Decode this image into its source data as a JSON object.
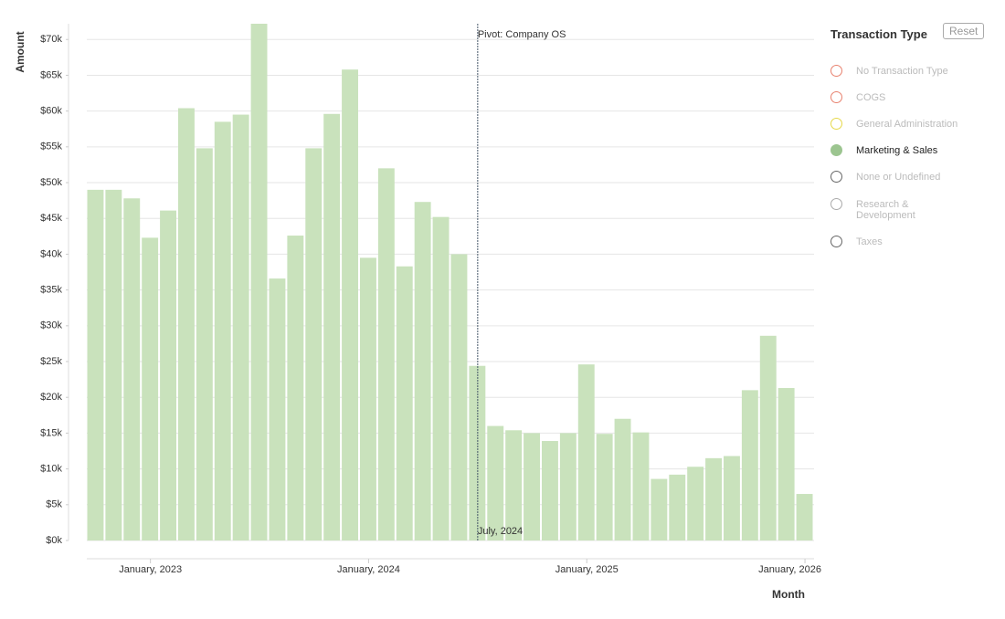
{
  "chart_data": {
    "type": "bar",
    "y_label": "Amount",
    "x_label": "Month",
    "categories": [
      null,
      null,
      null,
      "January, 2023",
      null,
      null,
      null,
      null,
      null,
      null,
      null,
      null,
      null,
      null,
      null,
      "January, 2024",
      null,
      null,
      null,
      null,
      null,
      null,
      null,
      null,
      null,
      null,
      null,
      "January, 2025",
      null,
      null,
      null,
      null,
      null,
      null,
      null,
      null,
      null,
      null,
      null,
      "January, 2026"
    ],
    "series": [
      {
        "name": "Marketing & Sales",
        "color": "#c9e2bc",
        "values": [
          49000,
          49000,
          47800,
          42300,
          46100,
          60400,
          54800,
          58500,
          59500,
          72200,
          36600,
          42600,
          54800,
          59600,
          65800,
          39500,
          52000,
          38300,
          47300,
          45200,
          40000,
          24400,
          16000,
          15400,
          15000,
          13900,
          15000,
          24600,
          14900,
          17000,
          15100,
          8600,
          9200,
          10300,
          11500,
          11800,
          21000,
          28600,
          21300,
          6500
        ]
      }
    ],
    "ylim": [
      0,
      72200
    ],
    "yticks": [
      {
        "value": 0,
        "label": "$0k"
      },
      {
        "value": 5000,
        "label": "$5k"
      },
      {
        "value": 10000,
        "label": "$10k"
      },
      {
        "value": 15000,
        "label": "$15k"
      },
      {
        "value": 20000,
        "label": "$20k"
      },
      {
        "value": 25000,
        "label": "$25k"
      },
      {
        "value": 30000,
        "label": "$30k"
      },
      {
        "value": 35000,
        "label": "$35k"
      },
      {
        "value": 40000,
        "label": "$40k"
      },
      {
        "value": 45000,
        "label": "$45k"
      },
      {
        "value": 50000,
        "label": "$50k"
      },
      {
        "value": 55000,
        "label": "$55k"
      },
      {
        "value": 60000,
        "label": "$60k"
      },
      {
        "value": 65000,
        "label": "$65k"
      },
      {
        "value": 70000,
        "label": "$70k"
      }
    ],
    "grid": true,
    "annotation": {
      "text": "Pivot: Company OS",
      "label": "July, 2024",
      "index": 21
    },
    "legend": {
      "title": "Transaction Type",
      "reset": "Reset",
      "items": [
        {
          "name": "No Transaction Type",
          "color": "#e8826f",
          "active": false
        },
        {
          "name": "COGS",
          "color": "#e8826f",
          "active": false
        },
        {
          "name": "General Administration",
          "color": "#e6d84a",
          "active": false
        },
        {
          "name": "Marketing & Sales",
          "color": "#9cc590",
          "active": true
        },
        {
          "name": "None or Undefined",
          "color": "#666666",
          "active": false
        },
        {
          "name": "Research & Development",
          "color": "#aaaaaa",
          "active": false
        },
        {
          "name": "Taxes",
          "color": "#666666",
          "active": false
        }
      ]
    }
  }
}
